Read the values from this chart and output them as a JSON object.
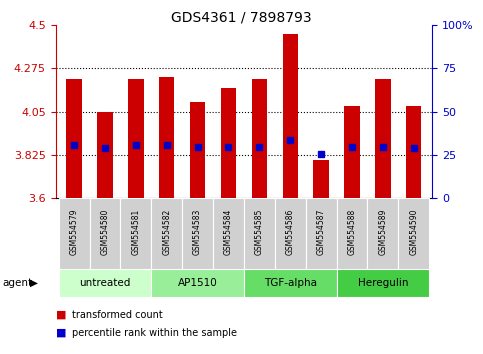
{
  "title": "GDS4361 / 7898793",
  "samples": [
    "GSM554579",
    "GSM554580",
    "GSM554581",
    "GSM554582",
    "GSM554583",
    "GSM554584",
    "GSM554585",
    "GSM554586",
    "GSM554587",
    "GSM554588",
    "GSM554589",
    "GSM554590"
  ],
  "bar_tops": [
    4.22,
    4.05,
    4.22,
    4.23,
    4.1,
    4.17,
    4.22,
    4.45,
    3.8,
    4.08,
    4.22,
    4.08
  ],
  "blue_markers": [
    3.875,
    3.862,
    3.877,
    3.876,
    3.867,
    3.866,
    3.866,
    3.9,
    3.828,
    3.866,
    3.866,
    3.862
  ],
  "bar_bottom": 3.6,
  "ylim_left": [
    3.6,
    4.5
  ],
  "ylim_right": [
    0,
    100
  ],
  "yticks_left": [
    3.6,
    3.825,
    4.05,
    4.275,
    4.5
  ],
  "ytick_labels_left": [
    "3.6",
    "3.825",
    "4.05",
    "4.275",
    "4.5"
  ],
  "yticks_right": [
    0,
    25,
    50,
    75,
    100
  ],
  "ytick_labels_right": [
    "0",
    "25",
    "50",
    "75",
    "100%"
  ],
  "dotted_lines": [
    3.825,
    4.05,
    4.275
  ],
  "bar_color": "#cc0000",
  "blue_color": "#0000cc",
  "bar_width": 0.5,
  "groups": [
    {
      "label": "untreated",
      "start": 0,
      "end": 3,
      "color": "#ccffcc"
    },
    {
      "label": "AP1510",
      "start": 3,
      "end": 6,
      "color": "#99ee99"
    },
    {
      "label": "TGF-alpha",
      "start": 6,
      "end": 9,
      "color": "#66dd66"
    },
    {
      "label": "Heregulin",
      "start": 9,
      "end": 12,
      "color": "#44cc44"
    }
  ],
  "sample_box_color": "#d0d0d0",
  "agent_label": "agent",
  "legend_red_label": "transformed count",
  "legend_blue_label": "percentile rank within the sample",
  "title_color": "#000000",
  "left_axis_color": "#cc0000",
  "right_axis_color": "#0000cc",
  "title_fontsize": 10,
  "tick_fontsize": 8,
  "sample_fontsize": 5.5,
  "group_fontsize": 7.5,
  "legend_fontsize": 7,
  "agent_fontsize": 7.5
}
